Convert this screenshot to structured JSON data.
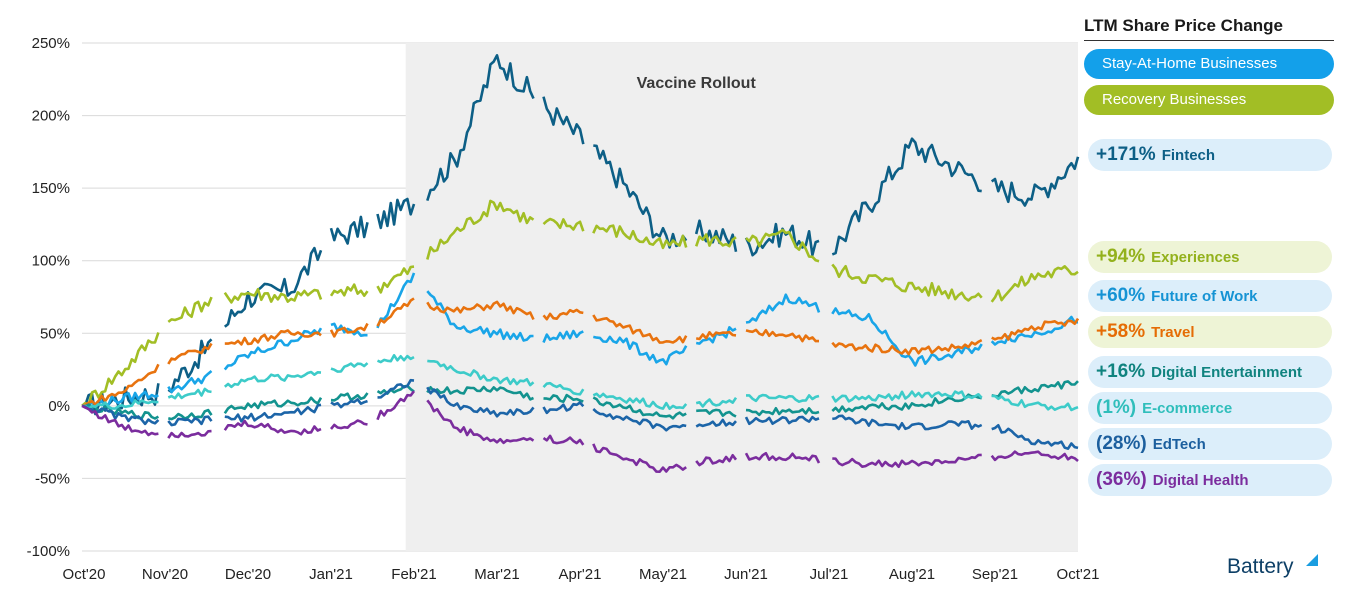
{
  "chart_data": {
    "type": "line",
    "title": "",
    "xlabel": "",
    "ylabel": "",
    "ylim": [
      -100,
      250
    ],
    "y_ticks": [
      -100,
      -50,
      0,
      50,
      100,
      150,
      200,
      250
    ],
    "y_tick_labels": [
      "-100%",
      "-50%",
      "0%",
      "50%",
      "100%",
      "150%",
      "200%",
      "250%"
    ],
    "x_tick_labels": [
      "Oct'20",
      "Nov'20",
      "Dec'20",
      "Jan'21",
      "Feb'21",
      "Mar'21",
      "Apr'21",
      "May'21",
      "Jun'21",
      "Jul'21",
      "Aug'21",
      "Sep'21",
      "Oct'21"
    ],
    "shaded_region": {
      "label": "Vaccine Rollout",
      "start_month": 3.9,
      "end_month": 12
    },
    "grid": "horizontal",
    "x_months": [
      0,
      0.5,
      1,
      1.5,
      2,
      2.5,
      3,
      3.5,
      4,
      4.5,
      5,
      5.5,
      6,
      6.5,
      7,
      7.5,
      8,
      8.5,
      9,
      9.5,
      10,
      10.5,
      11,
      11.5,
      12
    ],
    "series": [
      {
        "name": "Fintech",
        "color": "#0d5f86",
        "values": [
          0,
          5,
          10,
          40,
          75,
          80,
          115,
          125,
          140,
          170,
          240,
          210,
          185,
          155,
          115,
          120,
          110,
          120,
          105,
          140,
          180,
          165,
          150,
          145,
          171
        ]
      },
      {
        "name": "Experiences",
        "color": "#a2be25",
        "values": [
          0,
          25,
          55,
          72,
          78,
          75,
          78,
          80,
          95,
          120,
          140,
          125,
          125,
          120,
          110,
          115,
          112,
          118,
          95,
          88,
          82,
          78,
          75,
          90,
          94
        ]
      },
      {
        "name": "Future of Work",
        "color": "#19a5e8",
        "values": [
          0,
          5,
          10,
          20,
          35,
          45,
          55,
          50,
          90,
          55,
          50,
          45,
          50,
          45,
          30,
          45,
          55,
          75,
          65,
          60,
          30,
          35,
          45,
          50,
          60
        ]
      },
      {
        "name": "Travel",
        "color": "#e8730f",
        "values": [
          0,
          10,
          30,
          40,
          45,
          50,
          50,
          55,
          72,
          65,
          70,
          60,
          65,
          55,
          45,
          48,
          50,
          50,
          42,
          40,
          38,
          40,
          45,
          55,
          58
        ]
      },
      {
        "name": "Digital Entertainment",
        "color": "#13938f",
        "values": [
          0,
          -5,
          -8,
          -5,
          0,
          2,
          5,
          8,
          12,
          10,
          12,
          5,
          5,
          0,
          -8,
          -5,
          -5,
          -3,
          -3,
          0,
          0,
          5,
          8,
          12,
          16
        ]
      },
      {
        "name": "E-commerce",
        "color": "#3dcbc9",
        "values": [
          0,
          0,
          5,
          10,
          18,
          20,
          25,
          30,
          35,
          25,
          18,
          15,
          10,
          5,
          0,
          2,
          5,
          5,
          5,
          5,
          8,
          8,
          5,
          0,
          -1
        ]
      },
      {
        "name": "EdTech",
        "color": "#1c65a8",
        "values": [
          0,
          -8,
          -12,
          -10,
          -8,
          -5,
          0,
          5,
          18,
          0,
          -5,
          -3,
          0,
          -8,
          -15,
          -12,
          -10,
          -10,
          -8,
          -12,
          -15,
          -12,
          -15,
          -25,
          -28
        ]
      },
      {
        "name": "Digital Health",
        "color": "#7b2d9e",
        "values": [
          0,
          -15,
          -20,
          -18,
          -12,
          -18,
          -15,
          -10,
          10,
          -15,
          -25,
          -22,
          -25,
          -35,
          -45,
          -38,
          -35,
          -35,
          -38,
          -40,
          -40,
          -38,
          -35,
          -32,
          -36
        ]
      }
    ]
  },
  "legend": {
    "title": "LTM Share Price Change",
    "groups": [
      {
        "label": "Stay-At-Home Businesses",
        "color": "#13a0ea"
      },
      {
        "label": "Recovery Businesses",
        "color": "#a2be25"
      }
    ],
    "entries": [
      {
        "pct": "+171%",
        "name": "Fintech",
        "color": "#0d5f86",
        "bg": "#dceefa"
      },
      {
        "pct": "+94%",
        "name": "Experiences",
        "color": "#93b11c",
        "bg": "#eef4d6"
      },
      {
        "pct": "+60%",
        "name": "Future of Work",
        "color": "#1593d4",
        "bg": "#dceefa"
      },
      {
        "pct": "+58%",
        "name": "Travel",
        "color": "#e56c05",
        "bg": "#eef4d6"
      },
      {
        "pct": "+16%",
        "name": "Digital Entertainment",
        "color": "#10837f",
        "bg": "#dceefa"
      },
      {
        "pct": "(1%)",
        "name": "E-commerce",
        "color": "#2fbebb",
        "bg": "#dceefa"
      },
      {
        "pct": "(28%)",
        "name": "EdTech",
        "color": "#1c5f9e",
        "bg": "#dceefa"
      },
      {
        "pct": "(36%)",
        "name": "Digital Health",
        "color": "#7b2d9e",
        "bg": "#dceefa"
      }
    ]
  },
  "brand": {
    "name": "Battery",
    "color": "#0d3f66",
    "accent": "#1a9de0"
  }
}
